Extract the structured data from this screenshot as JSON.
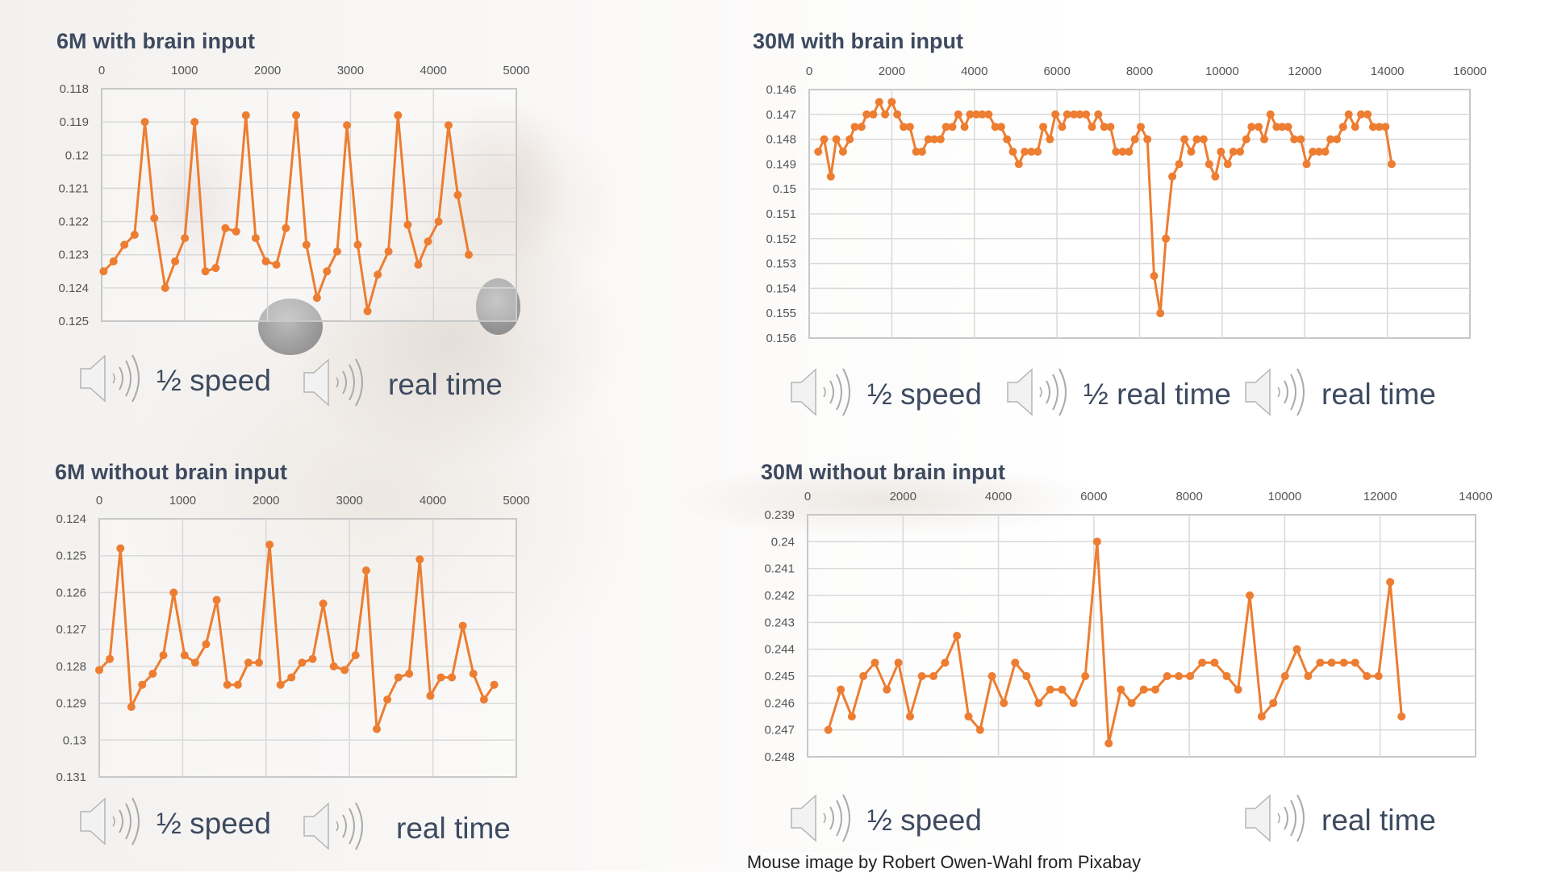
{
  "colors": {
    "series": "#ED7D31",
    "title": "#3D4A5F",
    "grid": "#D9D9D9"
  },
  "charts": [
    {
      "title": "6M with brain input",
      "audio": [
        {
          "icon": "speaker-icon",
          "label": "½ speed"
        },
        {
          "icon": "speaker-icon",
          "label": "real time"
        }
      ]
    },
    {
      "title": "30M with brain input",
      "audio": [
        {
          "icon": "speaker-icon",
          "label": "½ speed"
        },
        {
          "icon": "speaker-icon",
          "label": "½ real time"
        },
        {
          "icon": "speaker-icon",
          "label": "real time"
        }
      ]
    },
    {
      "title": "6M without brain input",
      "audio": [
        {
          "icon": "speaker-icon",
          "label": "½ speed"
        },
        {
          "icon": "speaker-icon",
          "label": "real time"
        }
      ]
    },
    {
      "title": "30M without brain input",
      "audio": [
        {
          "icon": "speaker-icon",
          "label": "½ speed"
        },
        {
          "icon": "speaker-icon",
          "label": "real time"
        }
      ]
    }
  ],
  "credit": "Mouse image by Robert Owen-Wahl from Pixabay",
  "chart_data": [
    {
      "type": "line",
      "title": "6M with brain input",
      "xlim": [
        0,
        5000
      ],
      "ylim": [
        0.118,
        0.125
      ],
      "y_reversed": true,
      "x_axis_position": "top",
      "grid": true,
      "x_ticks": [
        "0",
        "1000",
        "2000",
        "3000",
        "4000",
        "5000"
      ],
      "y_ticks": [
        "0.118",
        "0.119",
        "0.12",
        "0.121",
        "0.122",
        "0.123",
        "0.124",
        "0.125"
      ],
      "x": [
        23,
        143,
        274,
        397,
        521,
        635,
        766,
        886,
        1003,
        1121,
        1251,
        1375,
        1492,
        1622,
        1739,
        1857,
        1980,
        2107,
        2221,
        2345,
        2469,
        2596,
        2717,
        2840,
        2958,
        3088,
        3206,
        3329,
        3459,
        3573,
        3691,
        3818,
        3935,
        4062,
        4182,
        4294,
        4426
      ],
      "y": [
        0.1235,
        0.1232,
        0.1227,
        0.1224,
        0.119,
        0.1219,
        0.124,
        0.1232,
        0.1225,
        0.119,
        0.1235,
        0.1234,
        0.1222,
        0.1223,
        0.1188,
        0.1225,
        0.1232,
        0.1233,
        0.1222,
        0.1188,
        0.1227,
        0.1243,
        0.1235,
        0.1229,
        0.1191,
        0.1227,
        0.1247,
        0.1236,
        0.1229,
        0.1188,
        0.1221,
        0.1233,
        0.1226,
        0.122,
        0.1191,
        0.1212,
        0.123
      ]
    },
    {
      "type": "line",
      "title": "30M with brain input",
      "xlim": [
        0,
        16000
      ],
      "ylim": [
        0.146,
        0.156
      ],
      "y_reversed": true,
      "x_axis_position": "top",
      "grid": true,
      "x_ticks": [
        "0",
        "2000",
        "4000",
        "6000",
        "8000",
        "10000",
        "12000",
        "14000",
        "16000"
      ],
      "y_ticks": [
        "0.146",
        "0.147",
        "0.148",
        "0.149",
        "0.15",
        "0.151",
        "0.152",
        "0.153",
        "0.154",
        "0.155",
        "0.156"
      ],
      "x": [
        219,
        362,
        524,
        657,
        819,
        981,
        1105,
        1267,
        1390,
        1552,
        1695,
        1838,
        2000,
        2133,
        2286,
        2438,
        2590,
        2733,
        2886,
        3029,
        3181,
        3314,
        3467,
        3610,
        3762,
        3895,
        4048,
        4190,
        4343,
        4505,
        4648,
        4790,
        4933,
        5076,
        5219,
        5381,
        5533,
        5667,
        5829,
        5962,
        6124,
        6248,
        6410,
        6552,
        6705,
        6848,
        7000,
        7143,
        7295,
        7429,
        7590,
        7743,
        7886,
        8029,
        8190,
        8352,
        8502,
        8637,
        8793,
        8958,
        9086,
        9250,
        9386,
        9551,
        9685,
        9835,
        9970,
        10135,
        10270,
        10434,
        10584,
        10712,
        10884,
        11019,
        11169,
        11318,
        11453,
        11596,
        11745,
        11903,
        12045,
        12195,
        12345,
        12494,
        12622,
        12779,
        12929,
        13064,
        13221,
        13363,
        13521,
        13655,
        13805,
        13955,
        14105
      ],
      "y": [
        0.1485,
        0.148,
        0.1495,
        0.148,
        0.1485,
        0.148,
        0.1475,
        0.1475,
        0.147,
        0.147,
        0.1465,
        0.147,
        0.1465,
        0.147,
        0.1475,
        0.1475,
        0.1485,
        0.1485,
        0.148,
        0.148,
        0.148,
        0.1475,
        0.1475,
        0.147,
        0.1475,
        0.147,
        0.147,
        0.147,
        0.147,
        0.1475,
        0.1475,
        0.148,
        0.1485,
        0.149,
        0.1485,
        0.1485,
        0.1485,
        0.1475,
        0.148,
        0.147,
        0.1475,
        0.147,
        0.147,
        0.147,
        0.147,
        0.1475,
        0.147,
        0.1475,
        0.1475,
        0.1485,
        0.1485,
        0.1485,
        0.148,
        0.1475,
        0.148,
        0.1535,
        0.155,
        0.152,
        0.1495,
        0.149,
        0.148,
        0.1485,
        0.148,
        0.148,
        0.149,
        0.1495,
        0.1485,
        0.149,
        0.1485,
        0.1485,
        0.148,
        0.1475,
        0.1475,
        0.148,
        0.147,
        0.1475,
        0.1475,
        0.1475,
        0.148,
        0.148,
        0.149,
        0.1485,
        0.1485,
        0.1485,
        0.148,
        0.148,
        0.1475,
        0.147,
        0.1475,
        0.147,
        0.147,
        0.1475,
        0.1475,
        0.1475,
        0.149
      ]
    },
    {
      "type": "line",
      "title": "6M without brain input",
      "xlim": [
        0,
        5000
      ],
      "ylim": [
        0.124,
        0.131
      ],
      "y_reversed": true,
      "x_axis_position": "top",
      "grid": true,
      "x_ticks": [
        "0",
        "1000",
        "2000",
        "3000",
        "4000",
        "5000"
      ],
      "y_ticks": [
        "0.124",
        "0.125",
        "0.126",
        "0.127",
        "0.128",
        "0.129",
        "0.13",
        "0.131"
      ],
      "x": [
        0,
        127,
        254,
        385,
        515,
        642,
        769,
        892,
        1023,
        1150,
        1281,
        1408,
        1535,
        1662,
        1788,
        1915,
        2042,
        2173,
        2304,
        2431,
        2558,
        2685,
        2812,
        2942,
        3073,
        3200,
        3327,
        3454,
        3585,
        3715,
        3842,
        3969,
        4096,
        4227,
        4358,
        4485,
        4612,
        4735
      ],
      "y": [
        0.1281,
        0.1278,
        0.1248,
        0.1291,
        0.1285,
        0.1282,
        0.1277,
        0.126,
        0.1277,
        0.1279,
        0.1274,
        0.1262,
        0.1285,
        0.1285,
        0.1279,
        0.1279,
        0.1247,
        0.1285,
        0.1283,
        0.1279,
        0.1278,
        0.1263,
        0.128,
        0.1281,
        0.1277,
        0.1254,
        0.1297,
        0.1289,
        0.1283,
        0.1282,
        0.1251,
        0.1288,
        0.1283,
        0.1283,
        0.1269,
        0.1282,
        0.1289,
        0.1285
      ]
    },
    {
      "type": "line",
      "title": "30M without brain input",
      "xlim": [
        0,
        14000
      ],
      "ylim": [
        0.239,
        0.248
      ],
      "y_reversed": true,
      "x_axis_position": "top",
      "grid": true,
      "x_ticks": [
        "0",
        "2000",
        "4000",
        "6000",
        "8000",
        "10000",
        "12000",
        "14000"
      ],
      "y_ticks": [
        "0.239",
        "0.24",
        "0.241",
        "0.242",
        "0.243",
        "0.244",
        "0.245",
        "0.246",
        "0.247",
        "0.248"
      ],
      "x": [
        435,
        695,
        927,
        1169,
        1412,
        1661,
        1904,
        2147,
        2395,
        2638,
        2881,
        3130,
        3373,
        3616,
        3864,
        4113,
        4350,
        4588,
        4842,
        5085,
        5333,
        5576,
        5819,
        6068,
        6311,
        6565,
        6791,
        7045,
        7288,
        7537,
        7780,
        8017,
        8271,
        8528,
        8784,
        9023,
        9267,
        9517,
        9761,
        10006,
        10256,
        10489,
        10744,
        10983,
        11239,
        11477,
        11722,
        11966,
        12210,
        12449
      ],
      "y": [
        0.247,
        0.2455,
        0.2465,
        0.245,
        0.2445,
        0.2455,
        0.2445,
        0.2465,
        0.245,
        0.245,
        0.2445,
        0.2435,
        0.2465,
        0.247,
        0.245,
        0.246,
        0.2445,
        0.245,
        0.246,
        0.2455,
        0.2455,
        0.246,
        0.245,
        0.24,
        0.2475,
        0.2455,
        0.246,
        0.2455,
        0.2455,
        0.245,
        0.245,
        0.245,
        0.2445,
        0.2445,
        0.245,
        0.2455,
        0.242,
        0.2465,
        0.246,
        0.245,
        0.244,
        0.245,
        0.2445,
        0.2445,
        0.2445,
        0.2445,
        0.245,
        0.245,
        0.2415,
        0.2465
      ]
    }
  ]
}
